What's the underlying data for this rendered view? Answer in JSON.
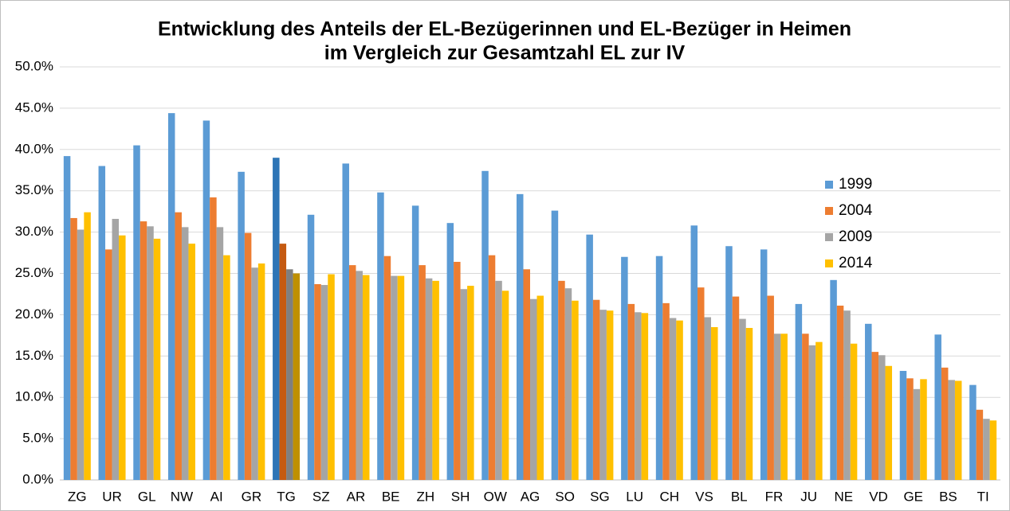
{
  "chart_data": {
    "type": "bar",
    "title": [
      "Entwicklung des Anteils der EL-Bezügerinnen und EL-Bezüger in Heimen",
      "im Vergleich zur Gesamtzahl EL zur IV"
    ],
    "categories": [
      "ZG",
      "UR",
      "GL",
      "NW",
      "AI",
      "GR",
      "TG",
      "SZ",
      "AR",
      "BE",
      "ZH",
      "SH",
      "OW",
      "AG",
      "SO",
      "SG",
      "LU",
      "CH",
      "VS",
      "BL",
      "FR",
      "JU",
      "NE",
      "VD",
      "GE",
      "BS",
      "TI"
    ],
    "highlight": "TG",
    "series": [
      {
        "name": "1999",
        "color": "#5b9bd5",
        "highlight_color": "#2e75b6",
        "values": [
          39.2,
          38.0,
          40.5,
          44.4,
          43.5,
          37.3,
          39.0,
          32.1,
          38.3,
          34.8,
          33.2,
          31.1,
          37.4,
          34.6,
          32.6,
          29.7,
          27.0,
          27.1,
          30.8,
          28.3,
          27.9,
          21.3,
          24.2,
          18.9,
          13.2,
          17.6,
          11.5
        ]
      },
      {
        "name": "2004",
        "color": "#ed7d31",
        "highlight_color": "#c55a11",
        "values": [
          31.7,
          27.9,
          31.3,
          32.4,
          34.2,
          29.9,
          28.6,
          23.7,
          26.0,
          27.1,
          26.0,
          26.4,
          27.2,
          25.5,
          24.1,
          21.8,
          21.3,
          21.4,
          23.3,
          22.2,
          22.3,
          17.7,
          21.1,
          15.5,
          12.3,
          13.6,
          8.5
        ]
      },
      {
        "name": "2009",
        "color": "#a5a5a5",
        "highlight_color": "#7f7f7f",
        "values": [
          30.3,
          31.6,
          30.7,
          30.6,
          30.6,
          25.7,
          25.5,
          23.6,
          25.3,
          24.7,
          24.4,
          23.1,
          24.1,
          21.9,
          23.2,
          20.6,
          20.3,
          19.6,
          19.7,
          19.5,
          17.7,
          16.3,
          20.5,
          15.1,
          11.0,
          12.1,
          7.4
        ]
      },
      {
        "name": "2014",
        "color": "#ffc000",
        "highlight_color": "#bf9000",
        "values": [
          32.4,
          29.6,
          29.2,
          28.6,
          27.2,
          26.2,
          25.0,
          24.9,
          24.8,
          24.7,
          24.1,
          23.5,
          22.9,
          22.3,
          21.7,
          20.5,
          20.2,
          19.3,
          18.5,
          18.4,
          17.7,
          16.7,
          16.5,
          13.8,
          12.2,
          12.0,
          7.2
        ]
      }
    ],
    "ylim": [
      0,
      50
    ],
    "yticks": [
      {
        "value": 0,
        "label": "0.0%"
      },
      {
        "value": 5,
        "label": "5.0%"
      },
      {
        "value": 10,
        "label": "10.0%"
      },
      {
        "value": 15,
        "label": "15.0%"
      },
      {
        "value": 20,
        "label": "20.0%"
      },
      {
        "value": 25,
        "label": "25.0%"
      },
      {
        "value": 30,
        "label": "30.0%"
      },
      {
        "value": 35,
        "label": "35.0%"
      },
      {
        "value": 40,
        "label": "40.0%"
      },
      {
        "value": 45,
        "label": "45.0%"
      },
      {
        "value": 50,
        "label": "50.0%"
      }
    ],
    "grid": true,
    "legend": "right"
  }
}
